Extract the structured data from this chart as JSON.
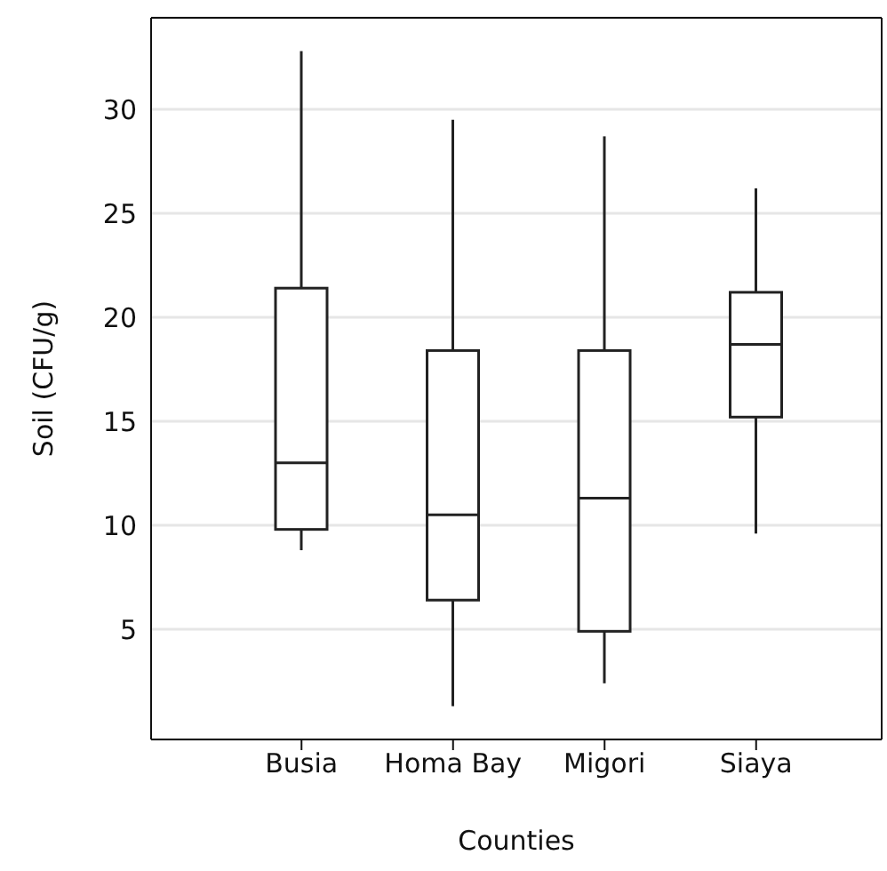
{
  "chart_data": {
    "type": "box",
    "xlabel": "Counties",
    "ylabel": "Soil (CFU/g)",
    "categories": [
      "Busia",
      "Homa Bay",
      "Migori",
      "Siaya"
    ],
    "color": "#222222",
    "boxes": [
      {
        "low": 8.8,
        "q1": 9.8,
        "median": 13.0,
        "q3": 21.4,
        "high": 32.8
      },
      {
        "low": 1.3,
        "q1": 6.4,
        "median": 10.5,
        "q3": 18.4,
        "high": 29.5
      },
      {
        "low": 2.4,
        "q1": 4.9,
        "median": 11.3,
        "q3": 18.4,
        "high": 28.7
      },
      {
        "low": 9.6,
        "q1": 15.2,
        "median": 18.7,
        "q3": 21.2,
        "high": 26.2
      }
    ],
    "ylim": [
      -0.3,
      34.4
    ],
    "yticks": [
      5,
      10,
      15,
      20,
      25,
      30
    ],
    "grid": "y"
  }
}
